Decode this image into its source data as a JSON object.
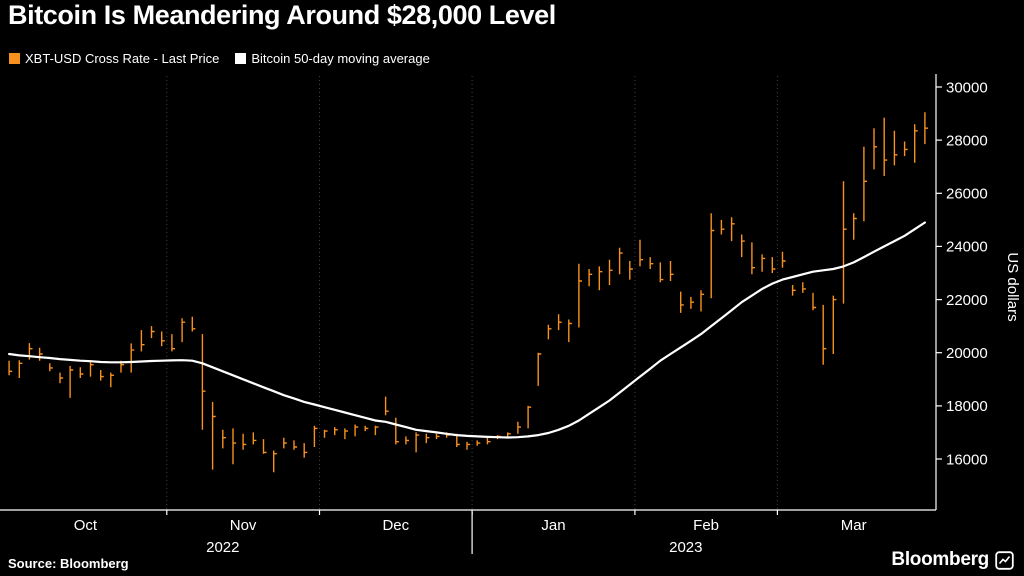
{
  "header": {
    "title": "Bitcoin Is Meandering Around $28,000 Level",
    "legend": [
      {
        "label": "XBT-USD Cross Rate - Last Price",
        "color": "#F7901E"
      },
      {
        "label": "Bitcoin 50-day moving average",
        "color": "#FFFFFF"
      }
    ]
  },
  "footer": {
    "source": "Source: Bloomberg",
    "brand": "Bloomberg"
  },
  "colors": {
    "background": "#000000",
    "grid": "#414141",
    "axis": "#FFFFFF",
    "bars": "#F7901E",
    "ma_line": "#FFFFFF"
  },
  "chart_data": {
    "type": "bar",
    "subtype": "hlc-price-bars-with-moving-average-line",
    "title": "Bitcoin Is Meandering Around $28,000 Level",
    "ylabel": "US dollars",
    "y_ticks": [
      16000,
      18000,
      20000,
      22000,
      24000,
      26000,
      28000,
      30000
    ],
    "ylim": [
      14100,
      30600
    ],
    "x_range_label": "Oct 2022 - Mar 2023",
    "x_months": [
      {
        "label": "Oct",
        "center": 7.5
      },
      {
        "label": "Nov",
        "center": 23
      },
      {
        "label": "Dec",
        "center": 38
      },
      {
        "label": "Jan",
        "center": 53.5
      },
      {
        "label": "Feb",
        "center": 68.5
      },
      {
        "label": "Mar",
        "center": 83
      }
    ],
    "x_years": [
      {
        "label": "2022",
        "center": 21
      },
      {
        "label": "2023",
        "center": 66.5
      }
    ],
    "month_boundaries": [
      15.5,
      30.5,
      45.5,
      61.5,
      75.5
    ],
    "year_divider_at": 45.5,
    "series": [
      {
        "name": "XBT-USD Cross Rate - Last Price",
        "type": "hlc-bars",
        "color": "#F7901E",
        "high": [
          19700,
          19720,
          20360,
          20190,
          19600,
          19250,
          19500,
          19450,
          19650,
          19350,
          19250,
          19700,
          20350,
          20850,
          21000,
          20800,
          20700,
          21300,
          21350,
          20700,
          18150,
          17100,
          17150,
          16950,
          17000,
          16750,
          16320,
          16800,
          16700,
          16600,
          17250,
          17100,
          17200,
          17150,
          17300,
          17250,
          17250,
          18350,
          17550,
          16850,
          17000,
          16950,
          16950,
          17000,
          16950,
          16650,
          16700,
          16800,
          16900,
          17000,
          17400,
          18000,
          20000,
          21050,
          21450,
          21250,
          23350,
          23150,
          23250,
          23500,
          23950,
          23450,
          24250,
          23600,
          23400,
          23450,
          22300,
          22100,
          22350,
          25250,
          25000,
          25100,
          24450,
          24150,
          23700,
          23600,
          23800,
          22550,
          22650,
          22250,
          21800,
          22150,
          26450,
          25250,
          27750,
          28450,
          28850,
          28350,
          27950,
          28600,
          29050
        ],
        "low": [
          19150,
          19050,
          19740,
          19700,
          19300,
          18850,
          18300,
          19050,
          19100,
          18950,
          18700,
          19250,
          19250,
          20050,
          20550,
          20250,
          20050,
          20400,
          20800,
          17100,
          15600,
          16400,
          15800,
          16350,
          16550,
          16200,
          15500,
          16400,
          16350,
          16050,
          16450,
          16800,
          16900,
          16750,
          16850,
          17050,
          16900,
          17650,
          16550,
          16550,
          16250,
          16600,
          16750,
          16800,
          16450,
          16350,
          16500,
          16550,
          16750,
          16800,
          16950,
          17150,
          18750,
          20500,
          20850,
          20400,
          20950,
          22500,
          22350,
          22550,
          22950,
          22750,
          23250,
          23150,
          22650,
          22700,
          21500,
          21650,
          21550,
          22050,
          24450,
          24200,
          23600,
          22950,
          23050,
          23000,
          23200,
          22150,
          22250,
          21600,
          19550,
          19950,
          21850,
          24250,
          24950,
          26900,
          26650,
          27050,
          27400,
          27150,
          27850
        ],
        "close": [
          19300,
          19600,
          20150,
          19950,
          19430,
          19050,
          19350,
          19200,
          19550,
          19100,
          19150,
          19550,
          20100,
          20300,
          20800,
          20450,
          20150,
          21150,
          20900,
          18550,
          17600,
          16800,
          16600,
          16550,
          16700,
          16250,
          16200,
          16600,
          16450,
          16250,
          17150,
          17050,
          17100,
          17050,
          17200,
          17150,
          17200,
          17800,
          16650,
          16700,
          16900,
          16800,
          16850,
          16900,
          16550,
          16550,
          16600,
          16650,
          16850,
          16950,
          17200,
          17950,
          19950,
          20900,
          21150,
          21100,
          22700,
          22950,
          23050,
          23100,
          23750,
          23150,
          23500,
          23350,
          22750,
          22950,
          21800,
          21900,
          22200,
          24600,
          24650,
          24850,
          24200,
          23200,
          23550,
          23150,
          23450,
          22350,
          22400,
          21700,
          20150,
          22000,
          24650,
          25050,
          26450,
          27750,
          27250,
          27450,
          27650,
          28350,
          28450
        ]
      },
      {
        "name": "Bitcoin 50-day moving average",
        "type": "line",
        "color": "#FFFFFF",
        "values": [
          19950,
          19900,
          19870,
          19830,
          19800,
          19760,
          19730,
          19700,
          19680,
          19650,
          19640,
          19640,
          19650,
          19670,
          19690,
          19700,
          19710,
          19720,
          19700,
          19600,
          19450,
          19300,
          19150,
          19000,
          18850,
          18700,
          18550,
          18400,
          18280,
          18150,
          18050,
          17950,
          17850,
          17750,
          17650,
          17550,
          17450,
          17400,
          17300,
          17200,
          17100,
          17050,
          17000,
          16950,
          16900,
          16870,
          16850,
          16830,
          16820,
          16810,
          16820,
          16850,
          16900,
          16980,
          17100,
          17250,
          17450,
          17700,
          17950,
          18200,
          18500,
          18800,
          19100,
          19400,
          19700,
          19950,
          20200,
          20450,
          20700,
          21000,
          21300,
          21600,
          21900,
          22150,
          22400,
          22600,
          22750,
          22850,
          22950,
          23050,
          23100,
          23150,
          23250,
          23400,
          23600,
          23800,
          24000,
          24200,
          24400,
          24650,
          24900
        ]
      }
    ]
  }
}
